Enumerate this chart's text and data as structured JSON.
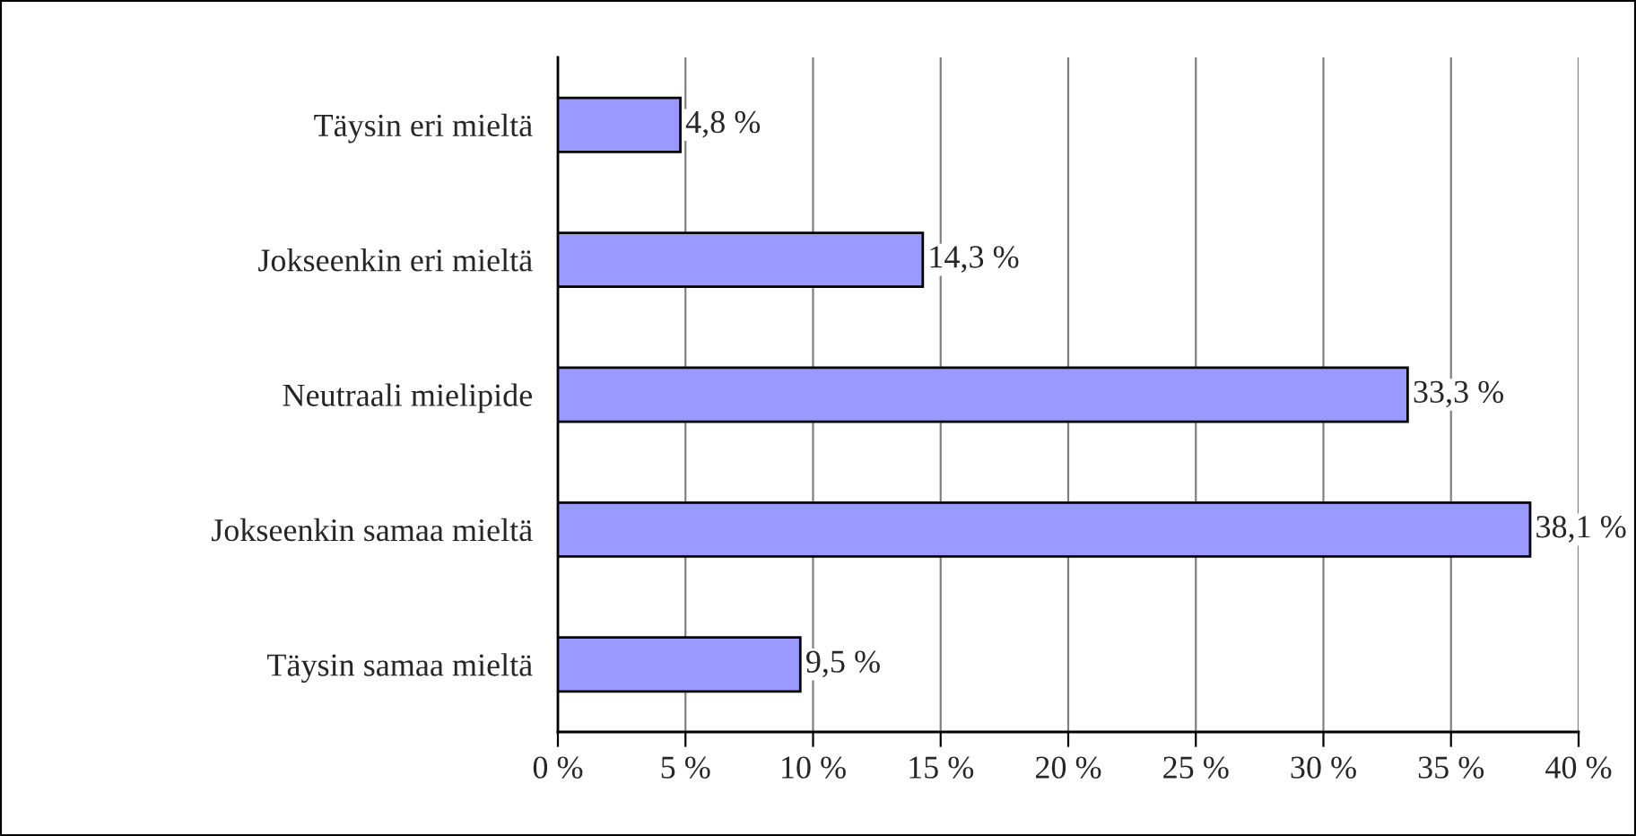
{
  "chart_data": {
    "type": "bar",
    "orientation": "horizontal",
    "categories": [
      "Täysin eri mieltä",
      "Jokseenkin eri mieltä",
      "Neutraali mielipide",
      "Jokseenkin samaa mieltä",
      "Täysin samaa mieltä"
    ],
    "values": [
      4.8,
      14.3,
      33.3,
      38.1,
      9.5
    ],
    "value_labels": [
      "4,8 %",
      "14,3 %",
      "33,3 %",
      "38,1 %",
      "9,5 %"
    ],
    "color": "#9999ff",
    "xlim": [
      0,
      40
    ],
    "xticks": [
      {
        "value": 0,
        "label": "0 %"
      },
      {
        "value": 5,
        "label": "5 %"
      },
      {
        "value": 10,
        "label": "10 %"
      },
      {
        "value": 15,
        "label": "15 %"
      },
      {
        "value": 20,
        "label": "20 %"
      },
      {
        "value": 25,
        "label": "25 %"
      },
      {
        "value": 30,
        "label": "30 %"
      },
      {
        "value": 35,
        "label": "35 %"
      },
      {
        "value": 40,
        "label": "40 %"
      }
    ],
    "grid": "x"
  }
}
